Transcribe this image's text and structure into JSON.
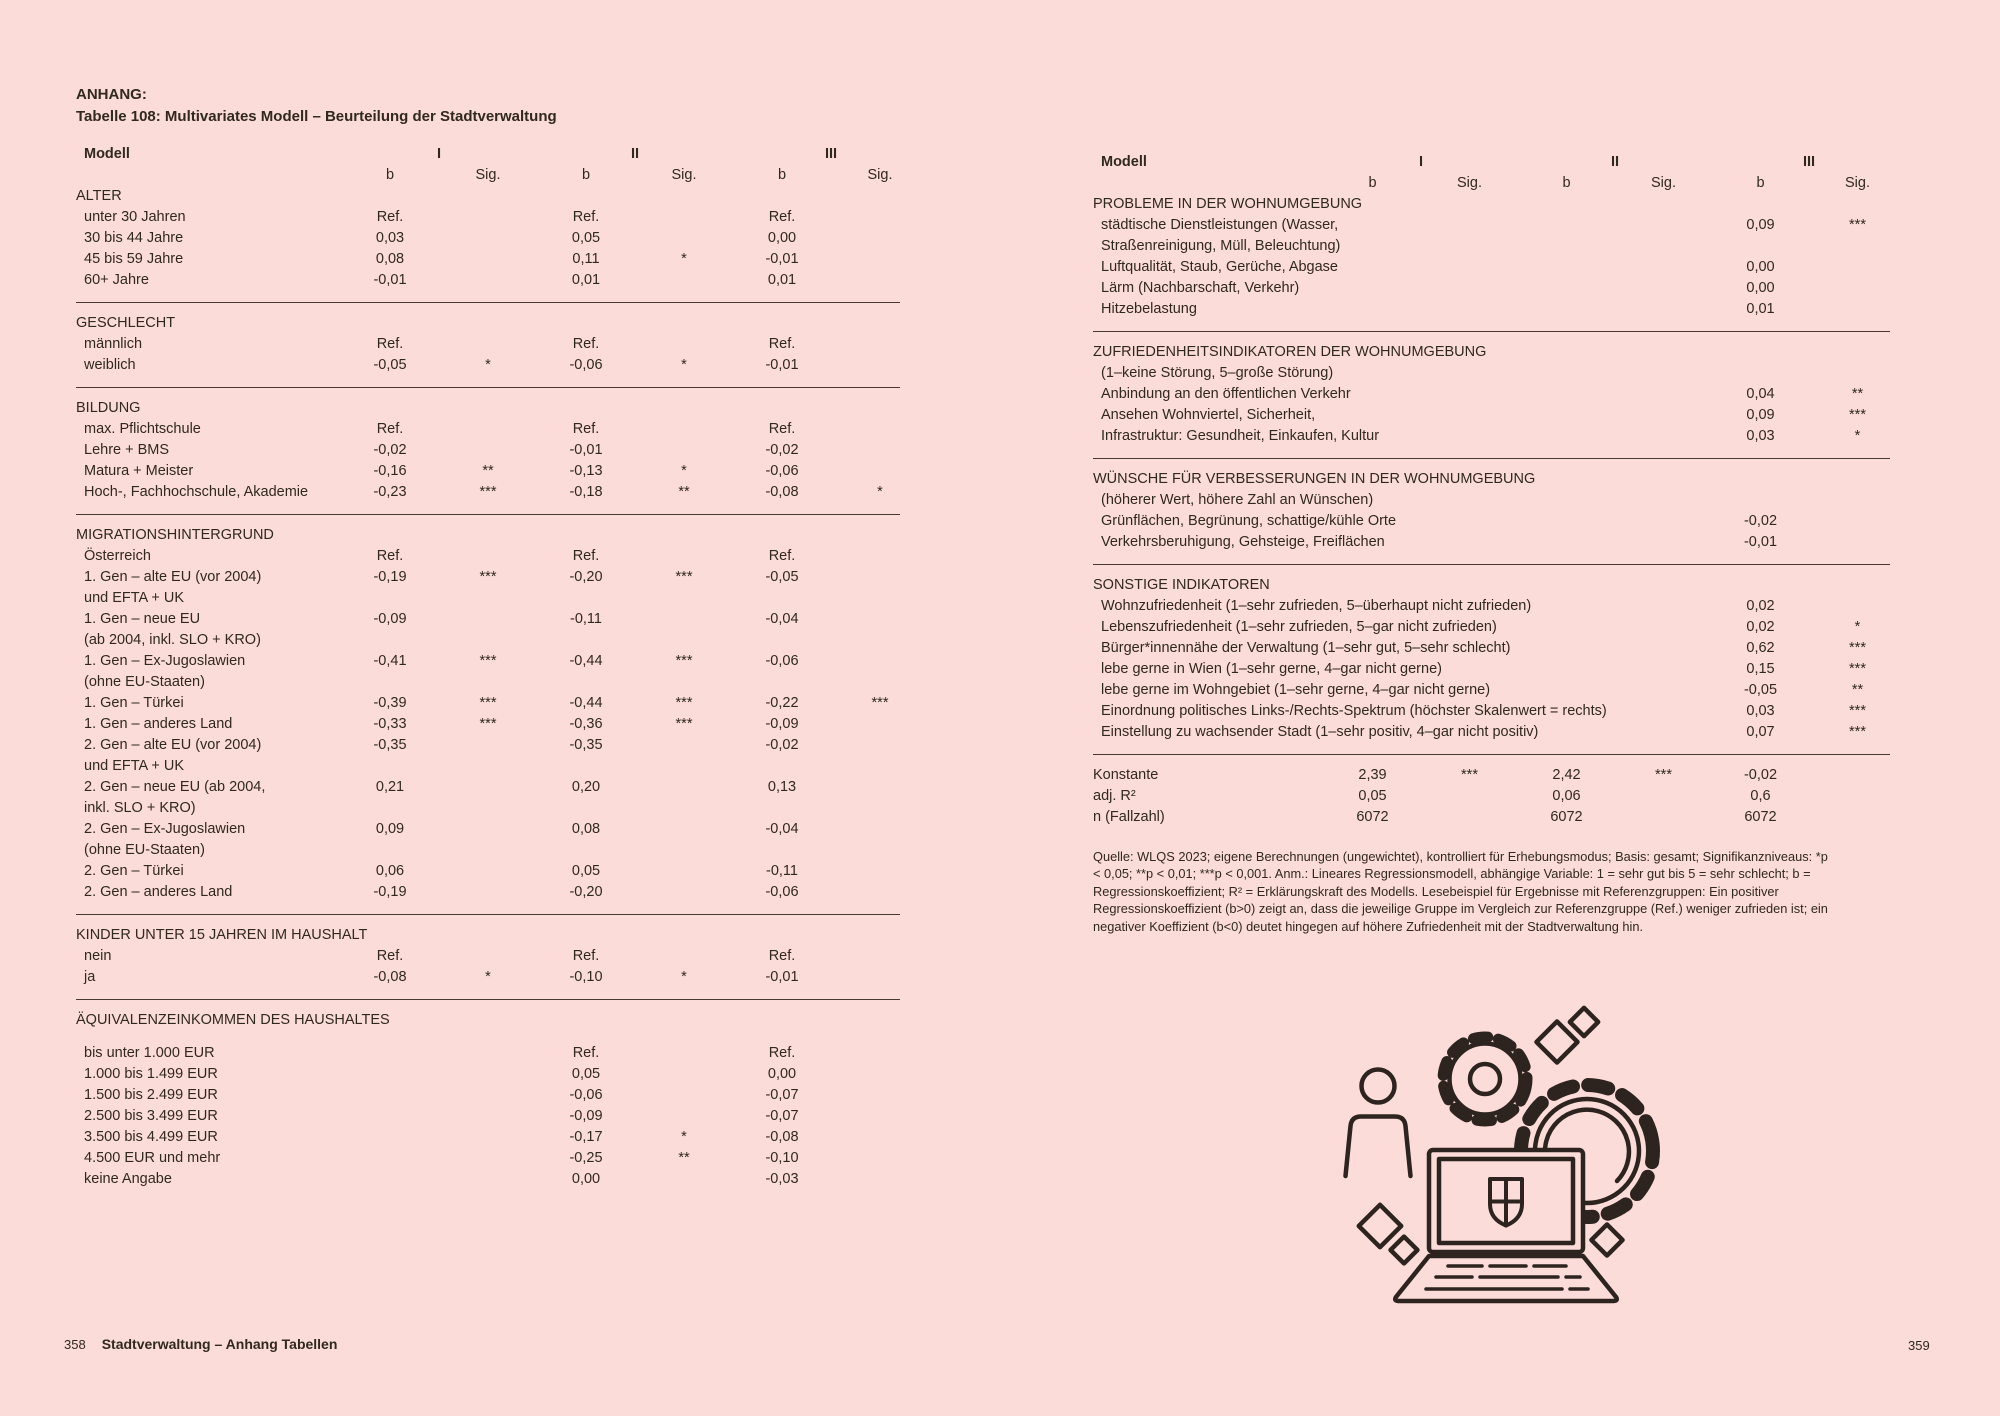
{
  "colors": {
    "background": "#fbdcd8",
    "ink": "#31281f",
    "rule": "#453931"
  },
  "title": {
    "kicker": "ANHANG:",
    "text": "Tabelle 108: Multivariates Modell – Beurteilung der Stadtverwaltung"
  },
  "table_header": {
    "model": "Modell",
    "models": [
      "I",
      "II",
      "III"
    ],
    "b": "b",
    "sig": "Sig."
  },
  "left_table": {
    "rows": [
      {
        "t": "sec",
        "label": "ALTER"
      },
      {
        "t": "row",
        "label": "unter 30 Jahren",
        "v": [
          "Ref.",
          "",
          "Ref.",
          "",
          "Ref.",
          ""
        ]
      },
      {
        "t": "row",
        "label": "30 bis 44 Jahre",
        "v": [
          "0,03",
          "",
          "0,05",
          "",
          "0,00",
          ""
        ]
      },
      {
        "t": "row",
        "label": "45 bis 59 Jahre",
        "v": [
          "0,08",
          "",
          "0,11",
          "*",
          "-0,01",
          ""
        ]
      },
      {
        "t": "row",
        "label": "60+ Jahre",
        "v": [
          "-0,01",
          "",
          "0,01",
          "",
          "0,01",
          ""
        ]
      },
      {
        "t": "rule"
      },
      {
        "t": "sec",
        "label": "GESCHLECHT"
      },
      {
        "t": "row",
        "label": "männlich",
        "v": [
          "Ref.",
          "",
          "Ref.",
          "",
          "Ref.",
          ""
        ]
      },
      {
        "t": "row",
        "label": "weiblich",
        "v": [
          "-0,05",
          "*",
          "-0,06",
          "*",
          "-0,01",
          ""
        ]
      },
      {
        "t": "rule"
      },
      {
        "t": "sec",
        "label": "BILDUNG"
      },
      {
        "t": "row",
        "label": "max. Pflichtschule",
        "v": [
          "Ref.",
          "",
          "Ref.",
          "",
          "Ref.",
          ""
        ]
      },
      {
        "t": "row",
        "label": "Lehre + BMS",
        "v": [
          "-0,02",
          "",
          "-0,01",
          "",
          "-0,02",
          ""
        ]
      },
      {
        "t": "row",
        "label": "Matura + Meister",
        "v": [
          "-0,16",
          "**",
          "-0,13",
          "*",
          "-0,06",
          ""
        ]
      },
      {
        "t": "row",
        "label": "Hoch-, Fachhochschule, Akademie",
        "v": [
          "-0,23",
          "***",
          "-0,18",
          "**",
          "-0,08",
          "*"
        ]
      },
      {
        "t": "rule"
      },
      {
        "t": "sec",
        "label": "MIGRATIONSHINTERGRUND"
      },
      {
        "t": "row",
        "label": "Österreich",
        "v": [
          "Ref.",
          "",
          "Ref.",
          "",
          "Ref.",
          ""
        ]
      },
      {
        "t": "row",
        "label": "1. Gen – alte EU (vor 2004)",
        "v": [
          "-0,19",
          "***",
          "-0,20",
          "***",
          "-0,05",
          ""
        ]
      },
      {
        "t": "cont",
        "label": "und EFTA + UK"
      },
      {
        "t": "row",
        "label": "1. Gen – neue EU",
        "v": [
          "-0,09",
          "",
          "-0,11",
          "",
          "-0,04",
          ""
        ]
      },
      {
        "t": "cont",
        "label": "(ab 2004, inkl. SLO + KRO)"
      },
      {
        "t": "row",
        "label": "1. Gen – Ex-Jugoslawien",
        "v": [
          "-0,41",
          "***",
          "-0,44",
          "***",
          "-0,06",
          ""
        ]
      },
      {
        "t": "cont",
        "label": "(ohne EU-Staaten)"
      },
      {
        "t": "row",
        "label": "1. Gen – Türkei",
        "v": [
          "-0,39",
          "***",
          "-0,44",
          "***",
          "-0,22",
          "***"
        ]
      },
      {
        "t": "row",
        "label": "1. Gen – anderes Land",
        "v": [
          "-0,33",
          "***",
          "-0,36",
          "***",
          "-0,09",
          ""
        ]
      },
      {
        "t": "row",
        "label": "2. Gen – alte EU (vor 2004)",
        "v": [
          "-0,35",
          "",
          "-0,35",
          "",
          "-0,02",
          ""
        ]
      },
      {
        "t": "cont",
        "label": "und EFTA + UK"
      },
      {
        "t": "row",
        "label": "2. Gen – neue EU (ab 2004,",
        "v": [
          "0,21",
          "",
          "0,20",
          "",
          "0,13",
          ""
        ]
      },
      {
        "t": "cont",
        "label": "inkl. SLO + KRO)"
      },
      {
        "t": "row",
        "label": "2. Gen – Ex-Jugoslawien",
        "v": [
          "0,09",
          "",
          "0,08",
          "",
          "-0,04",
          ""
        ]
      },
      {
        "t": "cont",
        "label": "(ohne EU-Staaten)"
      },
      {
        "t": "row",
        "label": "2. Gen – Türkei",
        "v": [
          "0,06",
          "",
          "0,05",
          "",
          "-0,11",
          ""
        ]
      },
      {
        "t": "row",
        "label": "2. Gen – anderes Land",
        "v": [
          "-0,19",
          "",
          "-0,20",
          "",
          "-0,06",
          ""
        ]
      },
      {
        "t": "rule"
      },
      {
        "t": "sec",
        "label": "KINDER UNTER 15 JAHREN IM HAUSHALT"
      },
      {
        "t": "row",
        "label": "nein",
        "v": [
          "Ref.",
          "",
          "Ref.",
          "",
          "Ref.",
          ""
        ]
      },
      {
        "t": "row",
        "label": "ja",
        "v": [
          "-0,08",
          "*",
          "-0,10",
          "*",
          "-0,01",
          ""
        ]
      },
      {
        "t": "rule"
      },
      {
        "t": "sec",
        "label": "ÄQUIVALENZEINKOMMEN DES HAUSHALTES"
      },
      {
        "t": "gap"
      },
      {
        "t": "row",
        "label": "bis unter 1.000 EUR",
        "v": [
          "",
          "",
          "Ref.",
          "",
          "Ref.",
          ""
        ]
      },
      {
        "t": "row",
        "label": "1.000 bis 1.499 EUR",
        "v": [
          "",
          "",
          "0,05",
          "",
          "0,00",
          ""
        ]
      },
      {
        "t": "row",
        "label": "1.500 bis 2.499 EUR",
        "v": [
          "",
          "",
          "-0,06",
          "",
          "-0,07",
          ""
        ]
      },
      {
        "t": "row",
        "label": "2.500 bis 3.499 EUR",
        "v": [
          "",
          "",
          "-0,09",
          "",
          "-0,07",
          ""
        ]
      },
      {
        "t": "row",
        "label": "3.500 bis 4.499 EUR",
        "v": [
          "",
          "",
          "-0,17",
          "*",
          "-0,08",
          ""
        ]
      },
      {
        "t": "row",
        "label": "4.500 EUR und mehr",
        "v": [
          "",
          "",
          "-0,25",
          "**",
          "-0,10",
          ""
        ]
      },
      {
        "t": "row",
        "label": "keine Angabe",
        "v": [
          "",
          "",
          "0,00",
          "",
          "-0,03",
          ""
        ]
      }
    ]
  },
  "right_table": {
    "rows": [
      {
        "t": "sec",
        "label": "PROBLEME IN DER WOHNUMGEBUNG"
      },
      {
        "t": "row",
        "label": "städtische Dienstleistungen (Wasser,",
        "v": [
          "",
          "",
          "",
          "",
          "0,09",
          "***"
        ]
      },
      {
        "t": "cont",
        "label": "Straßenreinigung, Müll, Beleuchtung)"
      },
      {
        "t": "row",
        "label": "Luftqualität, Staub, Gerüche, Abgase",
        "v": [
          "",
          "",
          "",
          "",
          "0,00",
          ""
        ]
      },
      {
        "t": "row",
        "label": "Lärm (Nachbarschaft, Verkehr)",
        "v": [
          "",
          "",
          "",
          "",
          "0,00",
          ""
        ]
      },
      {
        "t": "row",
        "label": "Hitzebelastung",
        "v": [
          "",
          "",
          "",
          "",
          "0,01",
          ""
        ]
      },
      {
        "t": "rule"
      },
      {
        "t": "sec",
        "label": "ZUFRIEDENHEITSINDIKATOREN DER WOHNUMGEBUNG"
      },
      {
        "t": "cont",
        "label": "(1–keine Störung, 5–große Störung)"
      },
      {
        "t": "row",
        "label": "Anbindung an den öffentlichen Verkehr",
        "v": [
          "",
          "",
          "",
          "",
          "0,04",
          "**"
        ]
      },
      {
        "t": "row",
        "label": "Ansehen Wohnviertel, Sicherheit,",
        "v": [
          "",
          "",
          "",
          "",
          "0,09",
          "***"
        ]
      },
      {
        "t": "row",
        "label": "Infrastruktur: Gesundheit, Einkaufen, Kultur",
        "v": [
          "",
          "",
          "",
          "",
          "0,03",
          "*"
        ]
      },
      {
        "t": "rule"
      },
      {
        "t": "sec",
        "label": "WÜNSCHE FÜR VERBESSERUNGEN IN DER WOHNUMGEBUNG"
      },
      {
        "t": "cont",
        "label": "(höherer Wert, höhere Zahl an Wünschen)"
      },
      {
        "t": "row",
        "label": "Grünflächen, Begrünung, schattige/kühle Orte",
        "v": [
          "",
          "",
          "",
          "",
          "-0,02",
          ""
        ]
      },
      {
        "t": "row",
        "label": "Verkehrsberuhigung, Gehsteige, Freiflächen",
        "v": [
          "",
          "",
          "",
          "",
          "-0,01",
          ""
        ]
      },
      {
        "t": "rule"
      },
      {
        "t": "sec",
        "label": "SONSTIGE INDIKATOREN"
      },
      {
        "t": "row",
        "label": "Wohnzufriedenheit (1–sehr zufrieden, 5–überhaupt nicht zufrieden)",
        "v": [
          "",
          "",
          "",
          "",
          "0,02",
          ""
        ]
      },
      {
        "t": "row",
        "label": "Lebenszufriedenheit (1–sehr zufrieden, 5–gar nicht zufrieden)",
        "v": [
          "",
          "",
          "",
          "",
          "0,02",
          "*"
        ]
      },
      {
        "t": "row",
        "label": "Bürger*innennähe der Verwaltung (1–sehr gut, 5–sehr schlecht)",
        "v": [
          "",
          "",
          "",
          "",
          "0,62",
          "***"
        ]
      },
      {
        "t": "row",
        "label": "lebe gerne in Wien (1–sehr gerne, 4–gar nicht gerne)",
        "v": [
          "",
          "",
          "",
          "",
          "0,15",
          "***"
        ]
      },
      {
        "t": "row",
        "label": "lebe gerne im Wohngebiet (1–sehr gerne, 4–gar nicht gerne)",
        "v": [
          "",
          "",
          "",
          "",
          "-0,05",
          "**"
        ]
      },
      {
        "t": "row",
        "label": "Einordnung politisches Links-/Rechts-Spektrum (höchster Skalenwert = rechts)",
        "v": [
          "",
          "",
          "",
          "",
          "0,03",
          "***"
        ]
      },
      {
        "t": "row",
        "label": "Einstellung zu wachsender Stadt (1–sehr positiv, 4–gar nicht positiv)",
        "v": [
          "",
          "",
          "",
          "",
          "0,07",
          "***"
        ]
      },
      {
        "t": "rule"
      },
      {
        "t": "sec",
        "label": "Konstante",
        "v": [
          "2,39",
          "***",
          "2,42",
          "***",
          "-0,02",
          ""
        ]
      },
      {
        "t": "sec",
        "label": "adj. R²",
        "v": [
          "0,05",
          "",
          "0,06",
          "",
          "0,6",
          ""
        ]
      },
      {
        "t": "sec",
        "label": "n (Fallzahl)",
        "v": [
          "6072",
          "",
          "6072",
          "",
          "6072",
          ""
        ]
      }
    ]
  },
  "footnote": "Quelle: WLQS 2023; eigene Berechnungen (ungewichtet), kontrolliert für Erhebungsmodus; Basis: gesamt; Signifikanzniveaus: *p < 0,05; **p < 0,01; ***p < 0,001. Anm.: Lineares Regressionsmodell, abhängige Variable: 1 = sehr gut bis 5 = sehr schlecht; b = Regressionskoeffizient; R² = Erklärungskraft des Modells. Lesebeispiel für Ergebnisse mit Referenzgruppen: Ein positiver Regressionskoeffizient (b>0) zeigt an, dass die jeweilige Gruppe im Vergleich zur Referenzgruppe (Ref.) weniger zufrieden ist; ein negativer Koeffizient (b<0) deutet hingegen auf höhere Zufriedenheit mit der Stadtverwaltung hin.",
  "footer": {
    "page_left": "358",
    "section": "Stadtverwaltung – Anhang Tabellen",
    "page_right": "359"
  },
  "icons": {
    "illustration": "laptop-gears-person-illustration"
  }
}
